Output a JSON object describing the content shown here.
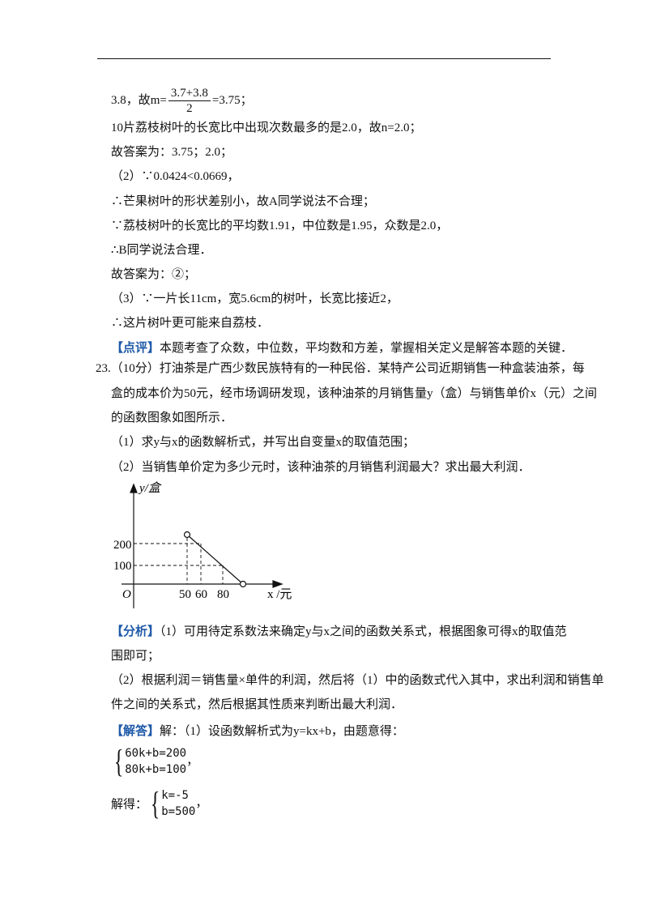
{
  "doc": {
    "l1": {
      "pre": "3.8，故m=",
      "num": "3.7+3.8",
      "den": "2",
      "post": "=3.75；"
    },
    "lines": [
      "10片荔枝树叶的长宽比中出现次数最多的是2.0，故n=2.0；",
      "故答案为：3.75；2.0；",
      "（2）∵0.0424<0.0669，",
      "∴芒果树叶的形状差别小，故A同学说法不合理；",
      "∵荔枝树叶的长宽比的平均数1.91，中位数是1.95，众数是2.0，",
      "∴B同学说法合理．",
      "故答案为：②；",
      "（3）∵一片长11cm，宽5.6cm的树叶，长宽比接近2，",
      "∴这片树叶更可能来自荔枝．"
    ],
    "review": {
      "tag": "【点评】",
      "text": "本题考查了众数，中位数，平均数和方差，掌握相关定义是解答本题的关键．"
    },
    "q23": [
      "23.（10分）打油茶是广西少数民族特有的一种民俗．某特产公司近期销售一种盒装油茶，每",
      "盒的成本价为50元，经市场调研发现，该种油茶的月销售量y（盒）与销售单价x（元）之间",
      "的函数图象如图所示．",
      "（1）求y与x的函数解析式，并写出自变量x的取值范围；",
      "（2）当销售单价定为多少元时，该种油茶的月销售利润最大？求出最大利润．"
    ],
    "figure": {
      "y_axis": "y/盒",
      "x_axis": "x /元",
      "origin": "O",
      "y_ticks": [
        "200",
        "100"
      ],
      "x_ticks": [
        "50",
        "60",
        "80"
      ]
    },
    "analysis": {
      "tag": "【分析】",
      "lines": [
        "（1）可用待定系数法来确定y与x之间的函数关系式，根据图象可得x的取值范",
        "围即可；",
        "（2）根据利润＝销售量×单件的利润，然后将（1）中的函数式代入其中，求出利润和销售单",
        "件之间的关系式，然后根据其性质来判断出最大利润．"
      ]
    },
    "answer": {
      "tag": "【解答】",
      "text": "解：（1）设函数解析式为y=kx+b，由题意得：",
      "system1": [
        "60k+b=200",
        "80k+b=100"
      ],
      "sep1": "，",
      "solved": "解得：",
      "system2": [
        "k=-5",
        "b=500"
      ],
      "sep2": "，"
    }
  }
}
